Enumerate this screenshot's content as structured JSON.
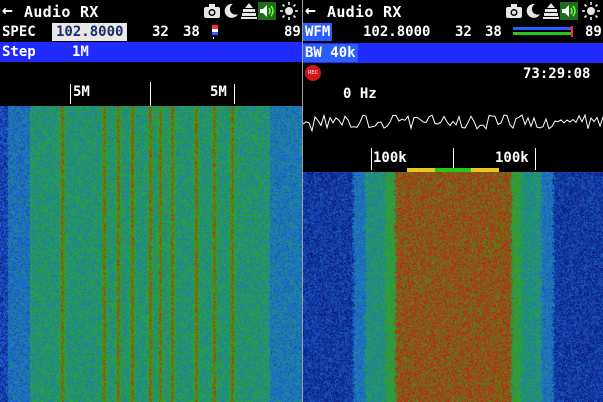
{
  "left": {
    "title": "Audio RX",
    "mode": "SPEC",
    "frequency": "102.8000",
    "num_a": "32",
    "num_b": "38",
    "num_c": "89",
    "step_label": "Step",
    "step_value": "1M",
    "scale_labels": [
      "5M",
      "5M"
    ]
  },
  "right": {
    "title": "Audio RX",
    "mode": "WFM",
    "frequency": "102.8000",
    "num_a": "32",
    "num_b": "38",
    "num_c": "89",
    "bandwidth": "BW 40k",
    "rec_label": "REC",
    "timer": "73:29:08",
    "offset": "0 Hz",
    "scale_labels": [
      "100k",
      "100k"
    ]
  },
  "icons": [
    "back-arrow-icon",
    "camera-icon",
    "moon-icon",
    "stack-icon",
    "speaker-icon",
    "brightness-icon"
  ],
  "colors": {
    "mode_highlight": "#2b5cff",
    "option_bar": "#1f2bff",
    "frequency_box": "#e8e8e8",
    "rec_button": "#d01818",
    "waterfall_low": "#1a2bd8",
    "waterfall_mid": "#22a81e",
    "waterfall_high": "#c81414"
  }
}
